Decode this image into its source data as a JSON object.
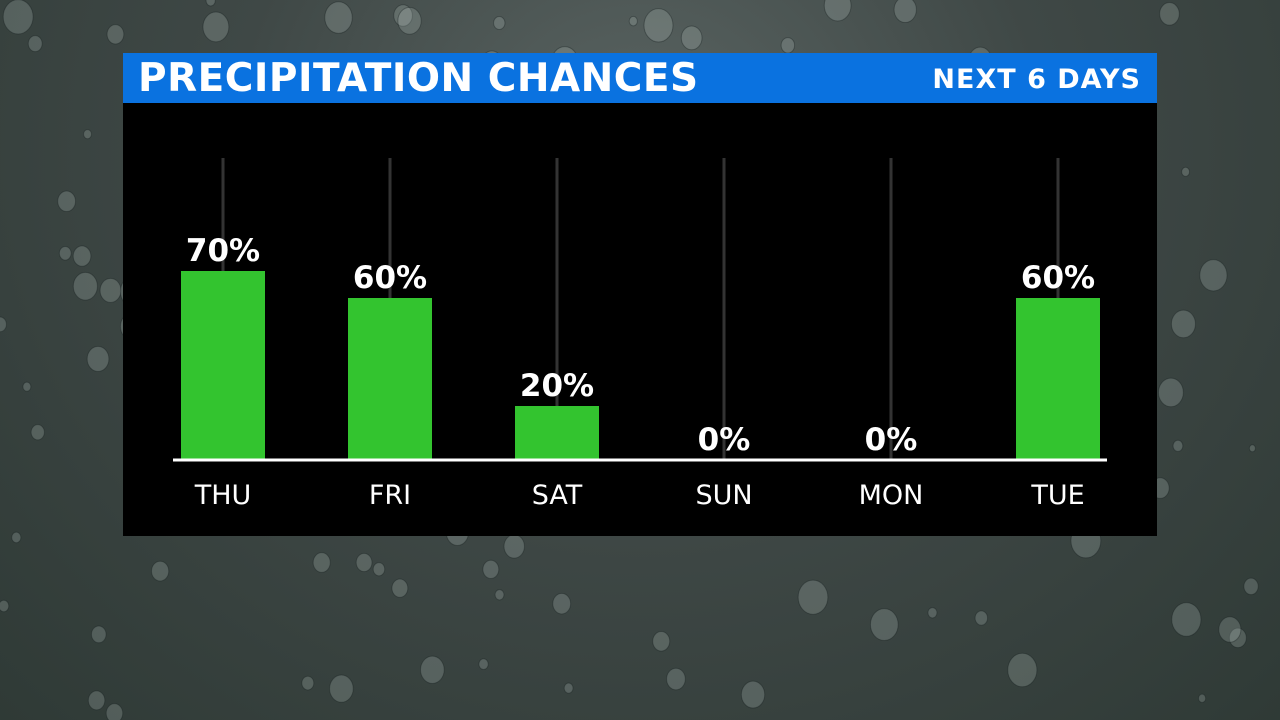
{
  "chart_data": {
    "type": "bar",
    "title": "PRECIPITATION CHANCES",
    "subtitle": "NEXT 6 DAYS",
    "categories": [
      "THU",
      "FRI",
      "SAT",
      "SUN",
      "MON",
      "TUE"
    ],
    "values": [
      70,
      60,
      20,
      0,
      0,
      60
    ],
    "value_labels": [
      "70%",
      "60%",
      "20%",
      "0%",
      "0%",
      "60%"
    ],
    "ylim": [
      0,
      100
    ],
    "grid": true,
    "colors": {
      "bar": "#33c42f",
      "title_bar": "#0a72e0",
      "panel": "#000000",
      "text": "#ffffff",
      "gridline": "#333333"
    }
  }
}
